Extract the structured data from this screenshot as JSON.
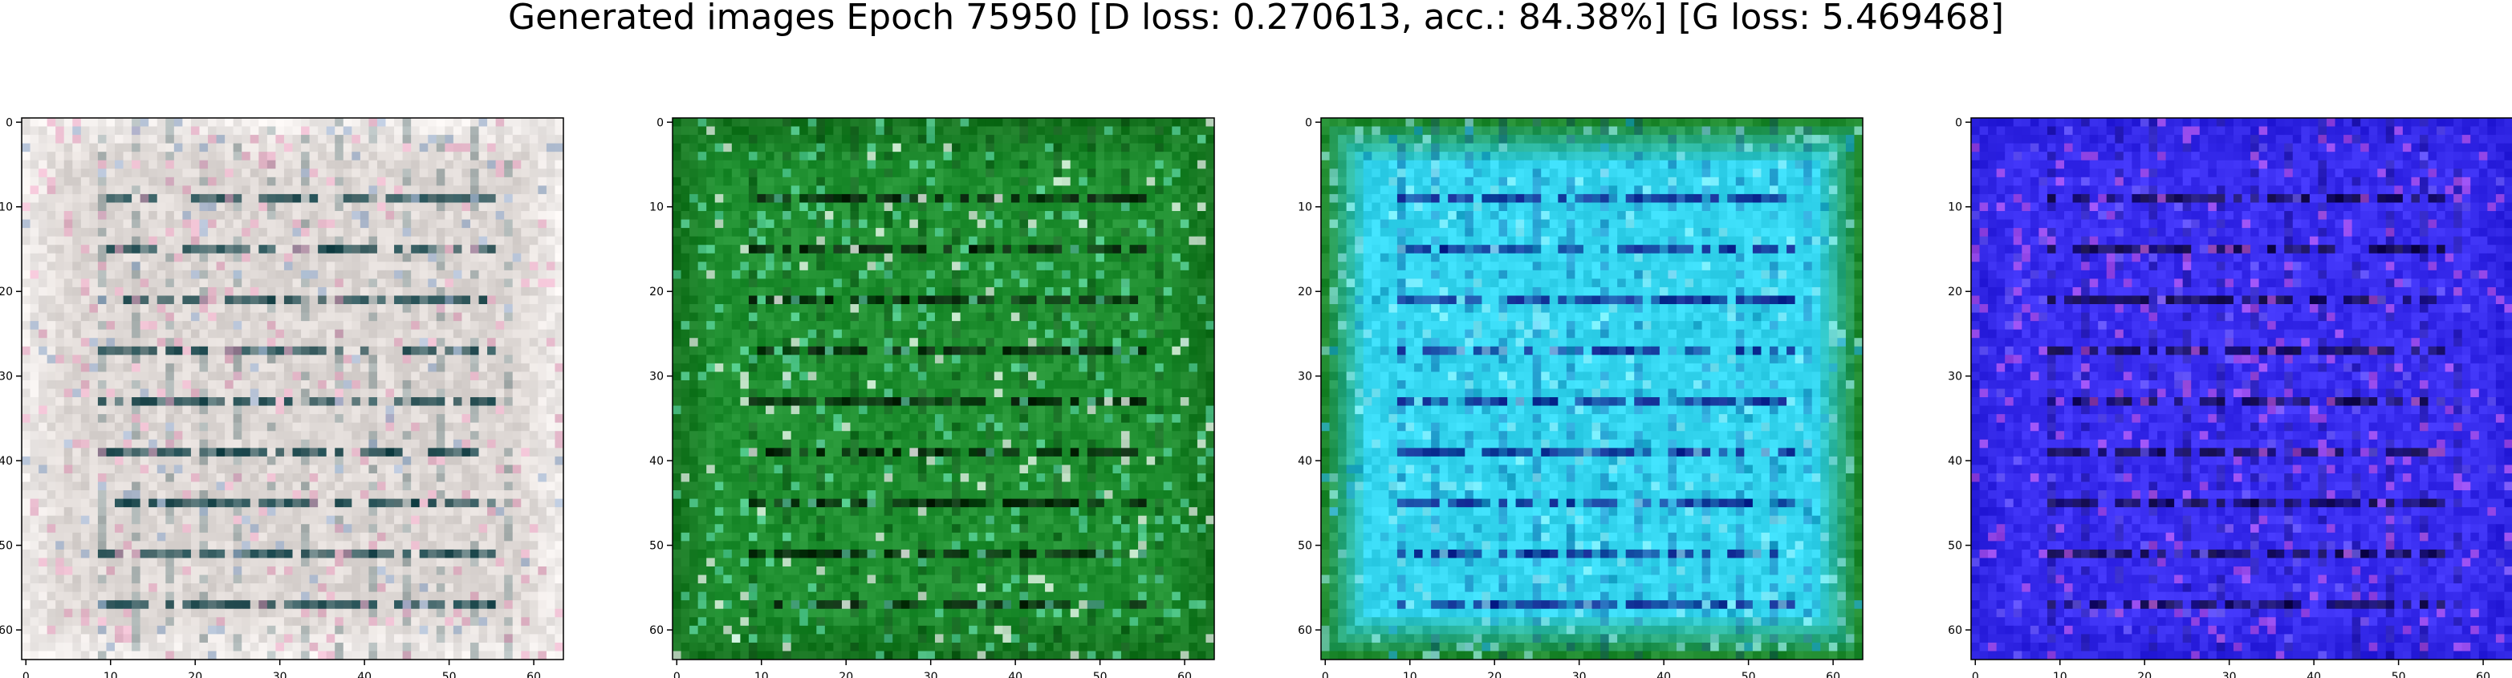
{
  "figure": {
    "title": "Generated images Epoch 75950 [D loss: 0.270613, acc.: 84.38%] [G loss: 5.469468]"
  },
  "chart_data": [
    {
      "type": "heatmap",
      "panel": "sample-1",
      "theme": {
        "base": "#ded8d5",
        "border": "#f0ecea",
        "line": "#0f3f45",
        "accent": "#ea9dc0",
        "alt": "#9fb3d0"
      },
      "xlim": [
        0,
        63
      ],
      "ylim": [
        63,
        0
      ],
      "xticks": [
        0,
        10,
        20,
        30,
        40,
        50,
        60
      ],
      "yticks": [
        0,
        10,
        20,
        30,
        40,
        50,
        60
      ]
    },
    {
      "type": "heatmap",
      "panel": "sample-2",
      "theme": {
        "base": "#1f8f30",
        "border": "#15731f",
        "line": "#061a08",
        "accent": "#6ff0c8",
        "alt": "#ffffff"
      },
      "xlim": [
        0,
        63
      ],
      "ylim": [
        63,
        0
      ],
      "xticks": [
        0,
        10,
        20,
        30,
        40,
        50,
        60
      ],
      "yticks": [
        0,
        10,
        20,
        30,
        40,
        50,
        60
      ]
    },
    {
      "type": "heatmap",
      "panel": "sample-3",
      "theme": {
        "base": "#35d6f0",
        "border": "#1e8a2e",
        "line": "#0d1a8a",
        "accent": "#a6f5ff",
        "alt": "#1aa0c8"
      },
      "xlim": [
        0,
        63
      ],
      "ylim": [
        63,
        0
      ],
      "xticks": [
        0,
        10,
        20,
        30,
        40,
        50,
        60
      ],
      "yticks": [
        0,
        10,
        20,
        30,
        40,
        50,
        60
      ]
    },
    {
      "type": "heatmap",
      "panel": "sample-4",
      "theme": {
        "base": "#3a2ef0",
        "border": "#2c22e0",
        "line": "#120a40",
        "accent": "#e060e8",
        "alt": "#6a5af5"
      },
      "xlim": [
        0,
        63
      ],
      "ylim": [
        63,
        0
      ],
      "xticks": [
        0,
        10,
        20,
        30,
        40,
        50,
        60
      ],
      "yticks": [
        0,
        10,
        20,
        30,
        40,
        50,
        60
      ]
    }
  ]
}
